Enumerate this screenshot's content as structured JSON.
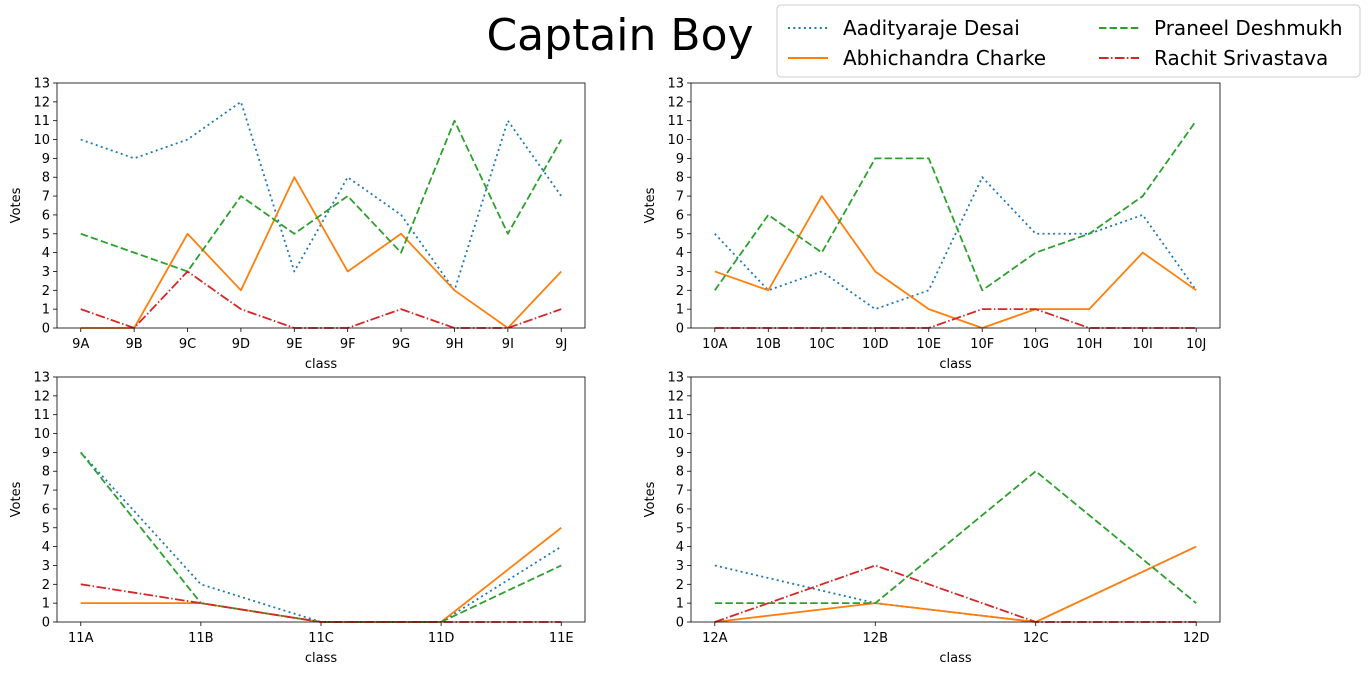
{
  "figure": {
    "title": "Captain Boy"
  },
  "legend": {
    "placement": "top-right",
    "entries": [
      {
        "name": "Aadityaraje Desai",
        "color": "#1f77b4",
        "dash": "dotted"
      },
      {
        "name": "Abhichandra Charke",
        "color": "#ff7f0e",
        "dash": "solid"
      },
      {
        "name": "Praneel Deshmukh",
        "color": "#2ca02c",
        "dash": "dashed"
      },
      {
        "name": "Rachit Srivastava",
        "color": "#d62728",
        "dash": "dashdot"
      }
    ]
  },
  "chart_data": [
    {
      "type": "line",
      "title": "",
      "xlabel": "class",
      "ylabel": "Votes",
      "ylim": [
        0,
        13
      ],
      "categories": [
        "9A",
        "9B",
        "9C",
        "9D",
        "9E",
        "9F",
        "9G",
        "9H",
        "9I",
        "9J"
      ],
      "series": [
        {
          "name": "Aadityaraje Desai",
          "values": [
            10,
            9,
            10,
            12,
            3,
            8,
            6,
            2,
            11,
            7
          ]
        },
        {
          "name": "Abhichandra Charke",
          "values": [
            0,
            0,
            5,
            2,
            8,
            3,
            5,
            2,
            0,
            3
          ]
        },
        {
          "name": "Praneel Deshmukh",
          "values": [
            5,
            4,
            3,
            7,
            5,
            7,
            4,
            11,
            5,
            10
          ]
        },
        {
          "name": "Rachit Srivastava",
          "values": [
            1,
            0,
            3,
            1,
            0,
            0,
            1,
            0,
            0,
            1
          ]
        }
      ]
    },
    {
      "type": "line",
      "title": "",
      "xlabel": "class",
      "ylabel": "Votes",
      "ylim": [
        0,
        13
      ],
      "categories": [
        "10A",
        "10B",
        "10C",
        "10D",
        "10E",
        "10F",
        "10G",
        "10H",
        "10I",
        "10J"
      ],
      "series": [
        {
          "name": "Aadityaraje Desai",
          "values": [
            5,
            2,
            3,
            1,
            2,
            8,
            5,
            5,
            6,
            2
          ]
        },
        {
          "name": "Abhichandra Charke",
          "values": [
            3,
            2,
            7,
            3,
            1,
            0,
            1,
            1,
            4,
            2
          ]
        },
        {
          "name": "Praneel Deshmukh",
          "values": [
            2,
            6,
            4,
            9,
            9,
            2,
            4,
            5,
            7,
            11
          ]
        },
        {
          "name": "Rachit Srivastava",
          "values": [
            0,
            0,
            0,
            0,
            0,
            1,
            1,
            0,
            0,
            0
          ]
        }
      ]
    },
    {
      "type": "line",
      "title": "",
      "xlabel": "class",
      "ylabel": "Votes",
      "ylim": [
        0,
        13
      ],
      "categories": [
        "11A",
        "11B",
        "11C",
        "11D",
        "11E"
      ],
      "series": [
        {
          "name": "Aadityaraje Desai",
          "values": [
            9,
            2,
            0,
            0,
            4
          ]
        },
        {
          "name": "Abhichandra Charke",
          "values": [
            1,
            1,
            0,
            0,
            5
          ]
        },
        {
          "name": "Praneel Deshmukh",
          "values": [
            9,
            1,
            0,
            0,
            3
          ]
        },
        {
          "name": "Rachit Srivastava",
          "values": [
            2,
            1,
            0,
            0,
            0
          ]
        }
      ]
    },
    {
      "type": "line",
      "title": "",
      "xlabel": "class",
      "ylabel": "Votes",
      "ylim": [
        0,
        13
      ],
      "categories": [
        "12A",
        "12B",
        "12C",
        "12D"
      ],
      "series": [
        {
          "name": "Aadityaraje Desai",
          "values": [
            3,
            1,
            0,
            4
          ]
        },
        {
          "name": "Abhichandra Charke",
          "values": [
            0,
            1,
            0,
            4
          ]
        },
        {
          "name": "Praneel Deshmukh",
          "values": [
            1,
            1,
            8,
            1
          ]
        },
        {
          "name": "Rachit Srivastava",
          "values": [
            0,
            3,
            0,
            0
          ]
        }
      ]
    }
  ]
}
